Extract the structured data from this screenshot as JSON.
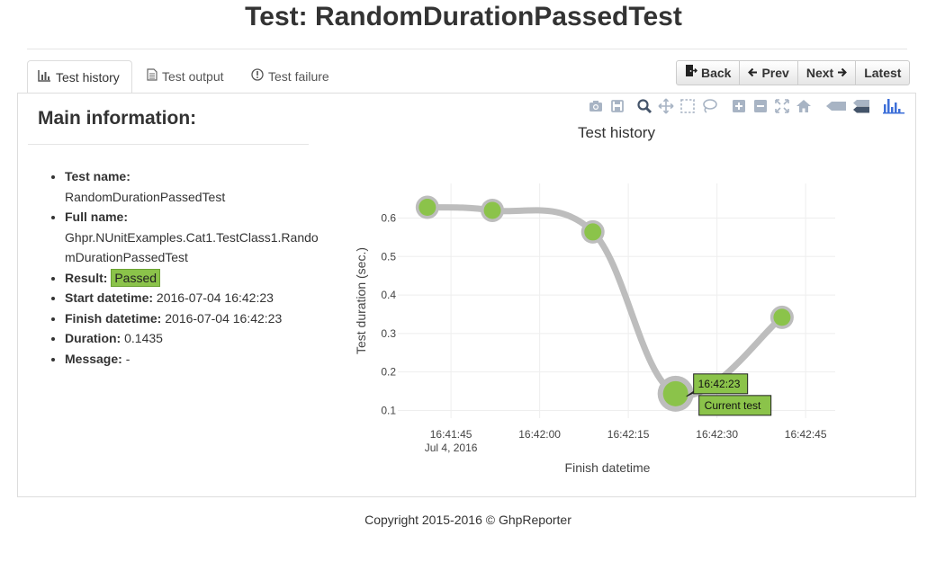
{
  "page": {
    "title": "Test: RandomDurationPassedTest"
  },
  "tabs": [
    {
      "label": "Test history",
      "icon": "bar-chart-icon",
      "active": true
    },
    {
      "label": "Test output",
      "icon": "document-icon",
      "active": false
    },
    {
      "label": "Test failure",
      "icon": "exclamation-icon",
      "active": false
    }
  ],
  "nav": {
    "back": {
      "label": "Back",
      "icon": "exit-door-icon"
    },
    "prev": {
      "label": "Prev",
      "icon": "arrow-left-icon"
    },
    "next": {
      "label": "Next",
      "icon": "arrow-right-icon"
    },
    "latest": {
      "label": "Latest"
    }
  },
  "main_info": {
    "heading": "Main information:",
    "test_name": {
      "label": "Test name:",
      "value": "RandomDurationPassedTest"
    },
    "full_name": {
      "label": "Full name:",
      "value": "Ghpr.NUnitExamples.Cat1.TestClass1.RandomDurationPassedTest"
    },
    "result": {
      "label": "Result:",
      "value": "Passed"
    },
    "start": {
      "label": "Start datetime:",
      "value": "2016-07-04 16:42:23"
    },
    "finish": {
      "label": "Finish datetime:",
      "value": "2016-07-04 16:42:23"
    },
    "duration": {
      "label": "Duration:",
      "value": "0.1435"
    },
    "message": {
      "label": "Message:",
      "value": "-"
    }
  },
  "toolbar_icons": [
    "camera-icon",
    "save-icon",
    "zoom-icon",
    "pan-icon",
    "box-select-icon",
    "lasso-select-icon",
    "zoom-in-icon",
    "zoom-out-icon",
    "autoscale-icon",
    "home-icon",
    "hover-closest-icon",
    "hover-compare-icon",
    "plotly-logo-icon"
  ],
  "chart_data": {
    "type": "line",
    "title": "Test history",
    "xlabel": "Finish datetime",
    "ylabel": "Test duration (sec.)",
    "x_ticks": [
      "16:41:45",
      "16:42:00",
      "16:42:15",
      "16:42:30",
      "16:42:45"
    ],
    "x_tick_sublabel": "Jul 4, 2016",
    "y_ticks": [
      0.1,
      0.2,
      0.3,
      0.4,
      0.5,
      0.6
    ],
    "xlim_seconds_after_16_41_00": [
      36,
      50
    ],
    "ylim": [
      0.08,
      0.69
    ],
    "series": [
      {
        "x": [
          "16:41:41",
          "16:41:52",
          "16:42:09",
          "16:42:23",
          "16:42:41"
        ],
        "y": [
          0.628,
          0.62,
          0.564,
          0.1435,
          0.342
        ],
        "line_color": "#bdbdbd",
        "marker_color": "#8bc34a"
      }
    ],
    "current_index": 3,
    "current_label": "16:42:23",
    "current_annotation": "Current test"
  }
}
